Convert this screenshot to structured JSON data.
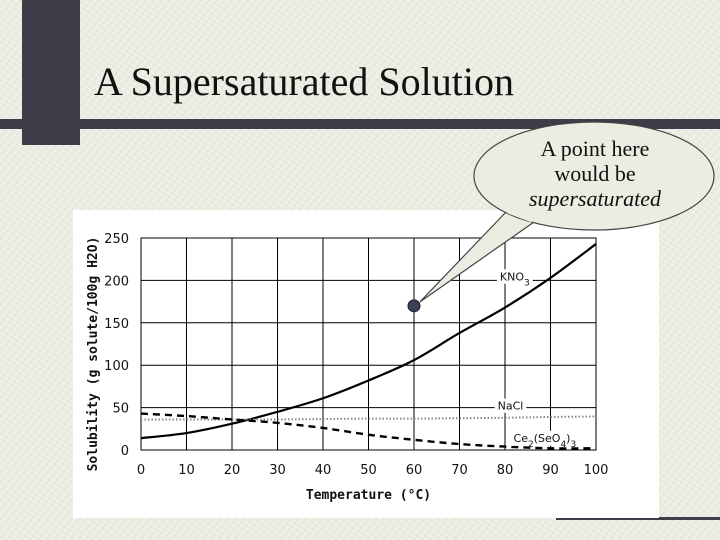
{
  "slide": {
    "title": "A Supersaturated Solution"
  },
  "callout": {
    "line1": "A point here",
    "line2": "would be",
    "line3": "supersaturated",
    "point": {
      "x": 60,
      "y": 170
    }
  },
  "colors": {
    "title_bar": "#3d3d48",
    "curve": "#000000",
    "grid": "#000000",
    "nacl_line": "#888888"
  },
  "chart_data": {
    "type": "line",
    "title": "",
    "xlabel": "Temperature (°C)",
    "ylabel": "Solubility (g solute/100g H2O)",
    "xlim": [
      0,
      100
    ],
    "ylim": [
      0,
      250
    ],
    "x_ticks": [
      0,
      10,
      20,
      30,
      40,
      50,
      60,
      70,
      80,
      90,
      100
    ],
    "y_ticks": [
      0,
      50,
      100,
      150,
      200,
      250
    ],
    "grid": true,
    "series": [
      {
        "name": "KNO3",
        "style": "solid",
        "x": [
          0,
          10,
          20,
          30,
          40,
          50,
          60,
          70,
          80,
          90,
          100
        ],
        "y": [
          14,
          20,
          31,
          45,
          61,
          82,
          106,
          138,
          168,
          203,
          243
        ]
      },
      {
        "name": "NaCl",
        "style": "dotted",
        "x": [
          0,
          10,
          20,
          30,
          40,
          50,
          60,
          70,
          80,
          90,
          100
        ],
        "y": [
          36,
          36,
          36,
          36,
          36.5,
          37,
          37,
          37.5,
          38,
          39,
          39.5
        ]
      },
      {
        "name": "Ce2(SeO4)3",
        "style": "dashed",
        "x": [
          0,
          10,
          20,
          30,
          40,
          50,
          60,
          70,
          80,
          90,
          100
        ],
        "y": [
          43,
          40,
          36,
          32,
          26,
          18,
          12,
          7,
          4,
          2,
          2
        ]
      }
    ]
  }
}
